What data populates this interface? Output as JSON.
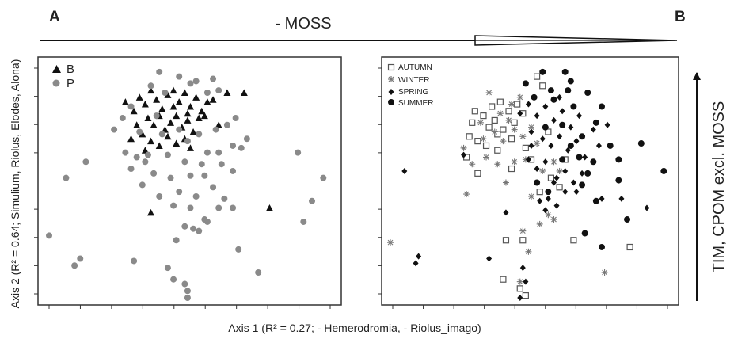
{
  "labels": {
    "panel_a": "A",
    "panel_b": "B",
    "top_arrow": "- MOSS",
    "right_arrow": "TIM, CPOM excl. MOSS",
    "x_axis": "Axis 1 (R² = 0.27; - Hemerodromia, - Riolus_imago)",
    "y_axis": "Axis 2 (R² = 0.64; Simulium, Riolus, Elodes, Alona)"
  },
  "colors": {
    "B": "#111111",
    "P": "#8a8a8a",
    "AUTUMN": "#555555",
    "WINTER": "#777777",
    "SPRING": "#111111",
    "SUMMER": "#111111",
    "frame": "#333333"
  },
  "chart_data": [
    {
      "type": "scatter",
      "title": "A",
      "xlim": [
        0,
        10
      ],
      "ylim": [
        0,
        10
      ],
      "grid": false,
      "legend": "top-left",
      "series": [
        {
          "name": "B",
          "marker": "triangle",
          "points": [
            [
              3.2,
              8.7
            ],
            [
              3.4,
              8.4
            ],
            [
              3.6,
              9.0
            ],
            [
              3.8,
              8.6
            ],
            [
              4.0,
              8.2
            ],
            [
              4.2,
              8.8
            ],
            [
              4.4,
              9.0
            ],
            [
              4.6,
              8.5
            ],
            [
              4.8,
              8.9
            ],
            [
              5.0,
              8.3
            ],
            [
              5.2,
              8.7
            ],
            [
              5.4,
              8.1
            ],
            [
              5.6,
              8.5
            ],
            [
              3.5,
              7.8
            ],
            [
              3.7,
              7.5
            ],
            [
              3.9,
              7.9
            ],
            [
              4.1,
              7.3
            ],
            [
              4.3,
              7.6
            ],
            [
              4.5,
              7.9
            ],
            [
              4.7,
              7.4
            ],
            [
              4.9,
              7.7
            ],
            [
              5.1,
              7.2
            ],
            [
              5.3,
              7.8
            ],
            [
              3.3,
              7.1
            ],
            [
              3.6,
              6.8
            ],
            [
              3.9,
              6.6
            ],
            [
              4.2,
              7.0
            ],
            [
              4.5,
              6.7
            ],
            [
              4.8,
              6.9
            ],
            [
              5.0,
              6.5
            ],
            [
              3.0,
              8.1
            ],
            [
              3.1,
              7.5
            ],
            [
              2.9,
              6.9
            ],
            [
              3.4,
              6.4
            ],
            [
              5.8,
              8.6
            ],
            [
              6.0,
              7.5
            ],
            [
              6.3,
              8.9
            ],
            [
              6.9,
              8.9
            ],
            [
              7.8,
              3.9
            ],
            [
              3.6,
              3.7
            ],
            [
              2.7,
              8.5
            ],
            [
              4.4,
              8.3
            ],
            [
              4.9,
              8.0
            ],
            [
              5.5,
              7.9
            ]
          ]
        },
        {
          "name": "P",
          "marker": "circle",
          "points": [
            [
              3.9,
              9.8
            ],
            [
              4.6,
              9.6
            ],
            [
              5.2,
              9.4
            ],
            [
              5.8,
              9.5
            ],
            [
              2.6,
              7.8
            ],
            [
              2.9,
              8.3
            ],
            [
              3.2,
              7.2
            ],
            [
              4.0,
              7.1
            ],
            [
              4.6,
              7.3
            ],
            [
              5.3,
              7.1
            ],
            [
              5.9,
              7.3
            ],
            [
              6.3,
              7.5
            ],
            [
              6.6,
              7.8
            ],
            [
              7.0,
              6.9
            ],
            [
              2.3,
              7.3
            ],
            [
              2.7,
              6.3
            ],
            [
              3.1,
              6.1
            ],
            [
              3.5,
              6.2
            ],
            [
              4.2,
              6.2
            ],
            [
              4.8,
              5.9
            ],
            [
              5.6,
              6.3
            ],
            [
              6.0,
              6.3
            ],
            [
              6.5,
              6.6
            ],
            [
              2.9,
              5.6
            ],
            [
              3.7,
              5.4
            ],
            [
              4.3,
              5.2
            ],
            [
              5.0,
              5.3
            ],
            [
              5.5,
              5.3
            ],
            [
              6.1,
              5.8
            ],
            [
              6.8,
              6.5
            ],
            [
              3.3,
              4.9
            ],
            [
              3.9,
              4.4
            ],
            [
              4.6,
              4.6
            ],
            [
              5.2,
              4.4
            ],
            [
              5.8,
              4.8
            ],
            [
              6.2,
              4.3
            ],
            [
              6.5,
              5.5
            ],
            [
              4.4,
              4.0
            ],
            [
              5.0,
              3.9
            ],
            [
              5.5,
              3.4
            ],
            [
              6.0,
              3.9
            ],
            [
              6.5,
              3.9
            ],
            [
              4.8,
              3.1
            ],
            [
              5.1,
              3.0
            ],
            [
              5.6,
              3.3
            ],
            [
              4.5,
              2.5
            ],
            [
              5.3,
              2.9
            ],
            [
              3.0,
              1.6
            ],
            [
              4.2,
              1.3
            ],
            [
              4.4,
              0.8
            ],
            [
              4.8,
              0.6
            ],
            [
              4.9,
              0.3
            ],
            [
              4.9,
              0.0
            ],
            [
              1.3,
              5.9
            ],
            [
              0.6,
              5.2
            ],
            [
              1.1,
              1.7
            ],
            [
              0.9,
              1.4
            ],
            [
              0.0,
              2.7
            ],
            [
              6.7,
              2.1
            ],
            [
              7.4,
              1.1
            ],
            [
              8.8,
              6.3
            ],
            [
              9.3,
              4.2
            ],
            [
              9.7,
              5.2
            ],
            [
              9.0,
              3.3
            ],
            [
              5.0,
              9.3
            ],
            [
              3.6,
              9.2
            ],
            [
              4.1,
              8.9
            ],
            [
              5.6,
              8.9
            ],
            [
              6.0,
              9.0
            ],
            [
              3.4,
              5.9
            ],
            [
              4.9,
              6.8
            ],
            [
              5.4,
              5.8
            ],
            [
              3.8,
              7.9
            ]
          ]
        }
      ]
    },
    {
      "type": "scatter",
      "title": "B",
      "xlim": [
        0,
        10
      ],
      "ylim": [
        0,
        10
      ],
      "grid": false,
      "legend": "top-left",
      "series": [
        {
          "name": "AUTUMN",
          "marker": "open-square",
          "points": [
            [
              3.0,
              8.1
            ],
            [
              3.3,
              7.9
            ],
            [
              2.9,
              7.6
            ],
            [
              3.6,
              8.3
            ],
            [
              3.9,
              8.5
            ],
            [
              4.2,
              8.1
            ],
            [
              3.5,
              7.4
            ],
            [
              3.8,
              7.1
            ],
            [
              4.4,
              7.6
            ],
            [
              4.7,
              8.0
            ],
            [
              5.2,
              9.6
            ],
            [
              5.4,
              9.2
            ],
            [
              3.1,
              6.8
            ],
            [
              3.4,
              6.6
            ],
            [
              3.8,
              6.4
            ],
            [
              4.3,
              6.9
            ],
            [
              4.8,
              6.5
            ],
            [
              2.7,
              6.1
            ],
            [
              3.1,
              5.4
            ],
            [
              4.3,
              5.6
            ],
            [
              5.7,
              5.2
            ],
            [
              6.0,
              4.8
            ],
            [
              5.3,
              4.6
            ],
            [
              4.1,
              2.5
            ],
            [
              4.7,
              2.5
            ],
            [
              6.5,
              2.5
            ],
            [
              8.5,
              2.2
            ],
            [
              4.0,
              0.8
            ],
            [
              4.6,
              0.4
            ],
            [
              4.8,
              0.1
            ],
            [
              5.0,
              6.0
            ],
            [
              5.6,
              7.2
            ],
            [
              6.2,
              6.0
            ],
            [
              3.7,
              7.7
            ],
            [
              4.0,
              7.3
            ],
            [
              4.5,
              8.4
            ],
            [
              2.8,
              7.0
            ]
          ]
        },
        {
          "name": "WINTER",
          "marker": "asterisk",
          "points": [
            [
              3.5,
              8.9
            ],
            [
              3.2,
              7.6
            ],
            [
              3.7,
              7.2
            ],
            [
              4.0,
              6.8
            ],
            [
              4.4,
              7.3
            ],
            [
              4.7,
              7.0
            ],
            [
              5.0,
              7.4
            ],
            [
              3.9,
              8.0
            ],
            [
              4.3,
              8.4
            ],
            [
              2.6,
              6.5
            ],
            [
              2.9,
              5.8
            ],
            [
              3.4,
              6.1
            ],
            [
              3.8,
              5.8
            ],
            [
              4.4,
              5.9
            ],
            [
              4.8,
              6.0
            ],
            [
              5.4,
              5.5
            ],
            [
              5.8,
              5.9
            ],
            [
              6.0,
              5.5
            ],
            [
              2.7,
              4.5
            ],
            [
              5.0,
              4.4
            ],
            [
              5.6,
              3.6
            ],
            [
              5.8,
              3.4
            ],
            [
              5.3,
              3.2
            ],
            [
              4.7,
              2.9
            ],
            [
              4.9,
              2.0
            ],
            [
              4.6,
              0.7
            ],
            [
              0.0,
              2.4
            ],
            [
              7.6,
              1.1
            ],
            [
              4.1,
              5.0
            ],
            [
              3.3,
              6.9
            ],
            [
              4.6,
              8.7
            ],
            [
              5.2,
              6.7
            ],
            [
              4.2,
              7.7
            ]
          ]
        },
        {
          "name": "SPRING",
          "marker": "diamond",
          "points": [
            [
              4.6,
              8.0
            ],
            [
              4.9,
              8.4
            ],
            [
              5.2,
              7.9
            ],
            [
              5.5,
              8.3
            ],
            [
              5.8,
              7.7
            ],
            [
              6.1,
              8.1
            ],
            [
              6.4,
              7.4
            ],
            [
              6.7,
              7.9
            ],
            [
              5.0,
              7.2
            ],
            [
              5.4,
              6.9
            ],
            [
              5.7,
              6.6
            ],
            [
              6.0,
              7.0
            ],
            [
              6.3,
              6.4
            ],
            [
              6.6,
              6.8
            ],
            [
              6.9,
              6.1
            ],
            [
              4.9,
              6.0
            ],
            [
              5.2,
              5.6
            ],
            [
              5.5,
              5.9
            ],
            [
              5.9,
              5.2
            ],
            [
              6.2,
              5.5
            ],
            [
              6.5,
              5.0
            ],
            [
              6.8,
              5.4
            ],
            [
              7.2,
              7.3
            ],
            [
              7.7,
              7.5
            ],
            [
              7.4,
              6.6
            ],
            [
              5.6,
              4.3
            ],
            [
              5.9,
              4.0
            ],
            [
              6.2,
              4.6
            ],
            [
              5.5,
              3.8
            ],
            [
              4.1,
              3.7
            ],
            [
              2.6,
              6.2
            ],
            [
              0.5,
              5.5
            ],
            [
              1.0,
              1.8
            ],
            [
              0.9,
              1.5
            ],
            [
              3.5,
              1.7
            ],
            [
              4.7,
              1.3
            ],
            [
              4.8,
              0.7
            ],
            [
              4.6,
              0.0
            ],
            [
              7.5,
              4.3
            ],
            [
              8.2,
              4.3
            ],
            [
              9.1,
              3.9
            ],
            [
              5.3,
              4.2
            ],
            [
              6.0,
              8.7
            ],
            [
              5.0,
              6.6
            ],
            [
              5.8,
              5.0
            ],
            [
              6.6,
              4.6
            ]
          ]
        },
        {
          "name": "SUMMER",
          "marker": "circle",
          "points": [
            [
              5.4,
              9.8
            ],
            [
              6.2,
              9.8
            ],
            [
              4.8,
              9.3
            ],
            [
              5.7,
              9.0
            ],
            [
              6.4,
              9.4
            ],
            [
              7.0,
              8.9
            ],
            [
              7.5,
              8.3
            ],
            [
              5.1,
              8.7
            ],
            [
              5.5,
              7.4
            ],
            [
              5.8,
              8.6
            ],
            [
              6.1,
              7.5
            ],
            [
              6.5,
              8.3
            ],
            [
              6.8,
              7.0
            ],
            [
              6.1,
              6.0
            ],
            [
              6.7,
              6.1
            ],
            [
              6.8,
              4.9
            ],
            [
              7.2,
              5.9
            ],
            [
              7.0,
              5.4
            ],
            [
              7.3,
              4.2
            ],
            [
              7.5,
              2.2
            ],
            [
              7.8,
              6.6
            ],
            [
              8.1,
              6.0
            ],
            [
              8.9,
              6.7
            ],
            [
              9.7,
              5.5
            ],
            [
              8.4,
              3.4
            ],
            [
              8.1,
              5.1
            ],
            [
              6.9,
              2.8
            ],
            [
              5.6,
              4.6
            ],
            [
              5.2,
              5.0
            ],
            [
              6.4,
              6.6
            ],
            [
              7.3,
              7.6
            ],
            [
              6.3,
              9.0
            ]
          ]
        }
      ]
    }
  ]
}
